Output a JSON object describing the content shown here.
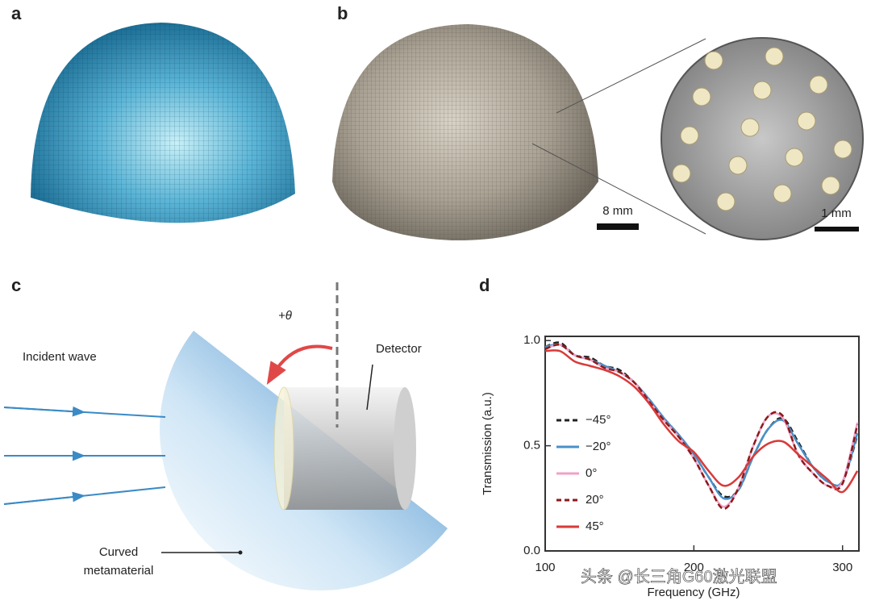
{
  "panels": [
    "a",
    "b",
    "c",
    "d"
  ],
  "panel_b": {
    "scale_bar": "8 mm",
    "inset_scale_bar": "1 mm"
  },
  "panel_c": {
    "theta": "+θ",
    "incident": "Incident wave",
    "detector": "Detector",
    "material": [
      "Curved",
      "metamaterial"
    ]
  },
  "chart_data": {
    "type": "line",
    "xlabel": "Frequency (GHz)",
    "ylabel": "Transmission (a.u.)",
    "x": [
      100,
      110,
      120,
      130,
      140,
      150,
      160,
      170,
      180,
      190,
      200,
      210,
      220,
      230,
      240,
      250,
      260,
      270,
      280,
      290,
      300,
      310
    ],
    "xlim": [
      100,
      311
    ],
    "ylim": [
      0,
      1.02
    ],
    "xticks": [
      100,
      200,
      300
    ],
    "yticks": [
      {
        "value": 0,
        "label": "0.0"
      },
      {
        "value": 0.5,
        "label": "0.5"
      },
      {
        "value": 1,
        "label": "1.0"
      }
    ],
    "legend": "left",
    "series": [
      {
        "name": "−45°",
        "color": "#222222",
        "dashed": true,
        "values": [
          0.97,
          0.99,
          0.93,
          0.92,
          0.88,
          0.86,
          0.8,
          0.72,
          0.63,
          0.55,
          0.46,
          0.35,
          0.26,
          0.29,
          0.45,
          0.58,
          0.63,
          0.52,
          0.4,
          0.33,
          0.33,
          0.55
        ]
      },
      {
        "name": "−20°",
        "color": "#4a90c8",
        "dashed": false,
        "values": [
          0.97,
          0.98,
          0.93,
          0.91,
          0.88,
          0.85,
          0.8,
          0.72,
          0.63,
          0.55,
          0.46,
          0.35,
          0.25,
          0.29,
          0.45,
          0.58,
          0.62,
          0.51,
          0.4,
          0.33,
          0.33,
          0.56
        ]
      },
      {
        "name": "0°",
        "color": "#f0a0c8",
        "dashed": false,
        "values": [
          0.96,
          0.98,
          0.93,
          0.91,
          0.87,
          0.85,
          0.8,
          0.71,
          0.62,
          0.54,
          0.44,
          0.31,
          0.21,
          0.3,
          0.5,
          0.64,
          0.63,
          0.46,
          0.37,
          0.31,
          0.33,
          0.61
        ]
      },
      {
        "name": "20°",
        "color": "#8b1a1a",
        "dashed": true,
        "values": [
          0.96,
          0.98,
          0.93,
          0.91,
          0.87,
          0.85,
          0.8,
          0.71,
          0.62,
          0.54,
          0.44,
          0.31,
          0.2,
          0.3,
          0.5,
          0.64,
          0.64,
          0.46,
          0.37,
          0.31,
          0.32,
          0.6
        ]
      },
      {
        "name": "45°",
        "color": "#d83a3a",
        "dashed": false,
        "values": [
          0.95,
          0.95,
          0.9,
          0.88,
          0.86,
          0.83,
          0.78,
          0.7,
          0.6,
          0.52,
          0.47,
          0.38,
          0.31,
          0.35,
          0.45,
          0.51,
          0.52,
          0.46,
          0.4,
          0.34,
          0.28,
          0.38
        ]
      }
    ]
  },
  "watermark": "头条 @长三角G60激光联盟"
}
